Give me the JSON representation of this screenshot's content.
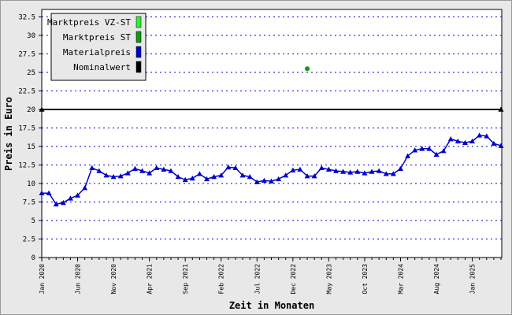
{
  "chart_data": {
    "type": "line",
    "xlabel": "Zeit in Monaten",
    "ylabel": "Preis in Euro",
    "categories": [
      "Jan 2020",
      null,
      null,
      null,
      null,
      "Jun 2020",
      null,
      null,
      null,
      null,
      "Nov 2020",
      null,
      null,
      null,
      null,
      "Apr 2021",
      null,
      null,
      null,
      null,
      "Sep 2021",
      null,
      null,
      null,
      null,
      "Feb 2022",
      null,
      null,
      null,
      null,
      "Jul 2022",
      null,
      null,
      null,
      null,
      "Dec 2022",
      null,
      null,
      null,
      null,
      "May 2023",
      null,
      null,
      null,
      null,
      "Oct 2023",
      null,
      null,
      null,
      null,
      "Mar 2024",
      null,
      null,
      null,
      null,
      "Aug 2024",
      null,
      null,
      null,
      null,
      "Jan 2025",
      null,
      null,
      null,
      null
    ],
    "ylim": [
      0,
      33.5
    ],
    "yticks": [
      0,
      2.5,
      5,
      7.5,
      10,
      12.5,
      15,
      17.5,
      20,
      22.5,
      25,
      27.5,
      30,
      32.5
    ],
    "grid": true,
    "legend": "upper left",
    "series": [
      {
        "name": "Marktpreis VZ-ST",
        "color": "#33ee33",
        "marker": "circle",
        "values": [
          null,
          null,
          null,
          null,
          null,
          null,
          null,
          null,
          null,
          null,
          null,
          null,
          null,
          null,
          null,
          null,
          null,
          null,
          null,
          null,
          null,
          null,
          null,
          null,
          null,
          null,
          null,
          null,
          null,
          null,
          null,
          null,
          null,
          null,
          null,
          null,
          null,
          null,
          null,
          null,
          null,
          null,
          null,
          null,
          null,
          null,
          null,
          null,
          null,
          null,
          null,
          null,
          null,
          null,
          null,
          null,
          null,
          null,
          null,
          null,
          null,
          null,
          null,
          null,
          null
        ]
      },
      {
        "name": "Marktpreis ST",
        "color": "#119911",
        "marker": "circle",
        "values": [
          null,
          null,
          null,
          null,
          null,
          null,
          null,
          null,
          null,
          null,
          null,
          null,
          null,
          null,
          null,
          null,
          null,
          null,
          null,
          null,
          null,
          null,
          null,
          null,
          null,
          null,
          null,
          null,
          null,
          null,
          null,
          null,
          null,
          null,
          null,
          null,
          null,
          25.5,
          null,
          null,
          null,
          null,
          null,
          null,
          null,
          null,
          null,
          null,
          null,
          null,
          null,
          null,
          null,
          null,
          null,
          null,
          null,
          null,
          null,
          null,
          null,
          null,
          null,
          null,
          null
        ]
      },
      {
        "name": "Materialpreis",
        "color": "#0000cc",
        "marker": "triangle",
        "values": [
          8.7,
          8.7,
          7.2,
          7.4,
          8.0,
          8.4,
          9.4,
          12.1,
          11.7,
          11.1,
          10.9,
          11.0,
          11.4,
          12.0,
          11.7,
          11.4,
          12.1,
          11.9,
          11.7,
          10.9,
          10.5,
          10.7,
          11.3,
          10.6,
          10.9,
          11.1,
          12.2,
          12.1,
          11.1,
          10.9,
          10.2,
          10.4,
          10.3,
          10.6,
          11.1,
          11.8,
          11.9,
          11.0,
          11.0,
          12.1,
          11.9,
          11.7,
          11.6,
          11.5,
          11.6,
          11.4,
          11.6,
          11.7,
          11.3,
          11.3,
          12.0,
          13.7,
          14.5,
          14.7,
          14.7,
          13.9,
          14.4,
          16.0,
          15.7,
          15.5,
          15.7,
          16.5,
          16.4,
          15.4,
          15.1
        ]
      },
      {
        "name": "Nominalwert",
        "color": "#000000",
        "marker": "ends",
        "values": [
          20,
          20,
          20,
          20,
          20,
          20,
          20,
          20,
          20,
          20,
          20,
          20,
          20,
          20,
          20,
          20,
          20,
          20,
          20,
          20,
          20,
          20,
          20,
          20,
          20,
          20,
          20,
          20,
          20,
          20,
          20,
          20,
          20,
          20,
          20,
          20,
          20,
          20,
          20,
          20,
          20,
          20,
          20,
          20,
          20,
          20,
          20,
          20,
          20,
          20,
          20,
          20,
          20,
          20,
          20,
          20,
          20,
          20,
          20,
          20,
          20,
          20,
          20,
          20,
          20
        ]
      }
    ]
  }
}
